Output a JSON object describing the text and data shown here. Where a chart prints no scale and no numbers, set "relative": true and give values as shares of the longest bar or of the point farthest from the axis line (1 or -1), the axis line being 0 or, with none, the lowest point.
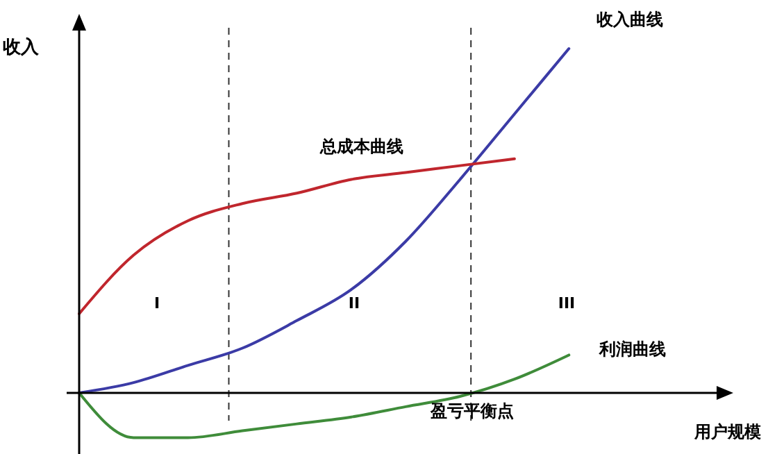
{
  "chart_data": {
    "type": "line",
    "relative": true,
    "xlabel": "用户规模",
    "ylabel": "收入",
    "categories": [
      null,
      null,
      null,
      null,
      null,
      null,
      null,
      null,
      null,
      null,
      null,
      null
    ],
    "series": [
      {
        "name": "收入曲线",
        "color": "#3b3ba6",
        "values": [
          0,
          0.03,
          0.08,
          0.13,
          0.21,
          0.3,
          0.44,
          0.62,
          0.81,
          1,
          null,
          null
        ]
      },
      {
        "name": "总成本曲线",
        "color": "#c0262d",
        "values": [
          0.23,
          0.4,
          0.5,
          0.55,
          0.58,
          0.62,
          0.64,
          0.66,
          0.68,
          null,
          null,
          null
        ]
      },
      {
        "name": "利润曲线",
        "color": "#3f8c3a",
        "values": [
          0,
          -0.13,
          -0.13,
          -0.11,
          -0.09,
          -0.07,
          -0.04,
          -0.01,
          0.04,
          0.11,
          null,
          null
        ]
      }
    ],
    "annotations": [
      "I",
      "II",
      "III",
      "盈亏平衡点"
    ],
    "marker": "none",
    "line_style": "solid"
  }
}
